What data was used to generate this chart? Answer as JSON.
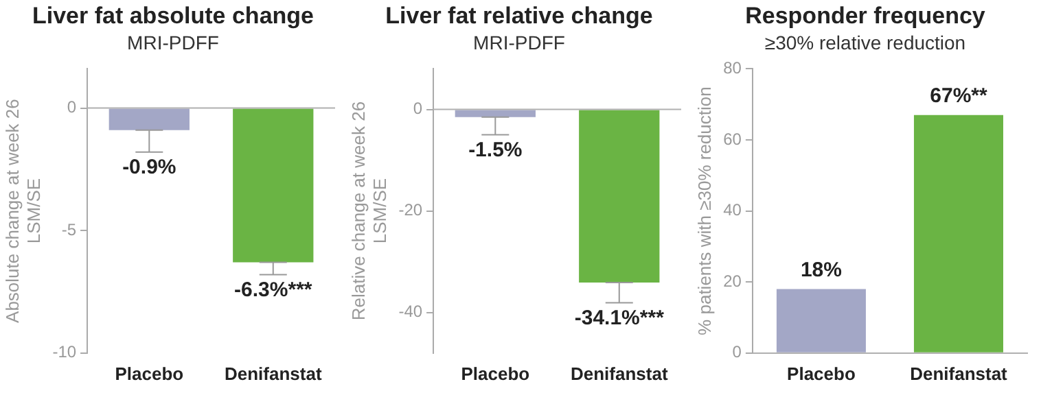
{
  "chart_data": [
    {
      "type": "bar",
      "title": "Liver fat absolute change",
      "subtitle": "MRI-PDFF",
      "ylabel": "Absolute change at week 26\nLSM/SE",
      "categories": [
        "Placebo",
        "Denifanstat"
      ],
      "values": [
        -0.9,
        -6.3
      ],
      "colors": [
        "#a3a7c6",
        "#6ab444"
      ],
      "errors": [
        [
          -1.8,
          -0.9
        ],
        [
          -6.8,
          -6.3
        ]
      ],
      "value_labels": [
        "-0.9%",
        "-6.3%***"
      ],
      "ylim": [
        -10,
        1.6
      ],
      "yticks": [
        -10,
        -5,
        0
      ],
      "grid": false,
      "ref_lines": [
        {
          "axis": "y",
          "value": 0,
          "color": "#b0b0b0"
        }
      ]
    },
    {
      "type": "bar",
      "title": "Liver fat relative change",
      "subtitle": "MRI-PDFF",
      "ylabel": "Relative change at week 26\nLSM/SE",
      "categories": [
        "Placebo",
        "Denifanstat"
      ],
      "values": [
        -1.5,
        -34.1
      ],
      "colors": [
        "#a3a7c6",
        "#6ab444"
      ],
      "errors": [
        [
          -5,
          -1.5
        ],
        [
          -38.1,
          -34.1
        ]
      ],
      "value_labels": [
        "-1.5%",
        "-34.1%***"
      ],
      "ylim": [
        -48,
        8
      ],
      "yticks": [
        -40,
        -20,
        0
      ],
      "grid": false,
      "ref_lines": [
        {
          "axis": "y",
          "value": 0,
          "color": "#b0b0b0"
        }
      ]
    },
    {
      "type": "bar",
      "title": "Responder frequency",
      "subtitle": "≥30% relative reduction",
      "ylabel": "% patients with ≥30% reduction",
      "categories": [
        "Placebo",
        "Denifanstat"
      ],
      "values": [
        18,
        67
      ],
      "colors": [
        "#a3a7c6",
        "#6ab444"
      ],
      "value_labels": [
        "18%",
        "67%**"
      ],
      "ylim": [
        0,
        80
      ],
      "yticks": [
        0,
        20,
        40,
        60,
        80
      ],
      "grid": false
    }
  ]
}
